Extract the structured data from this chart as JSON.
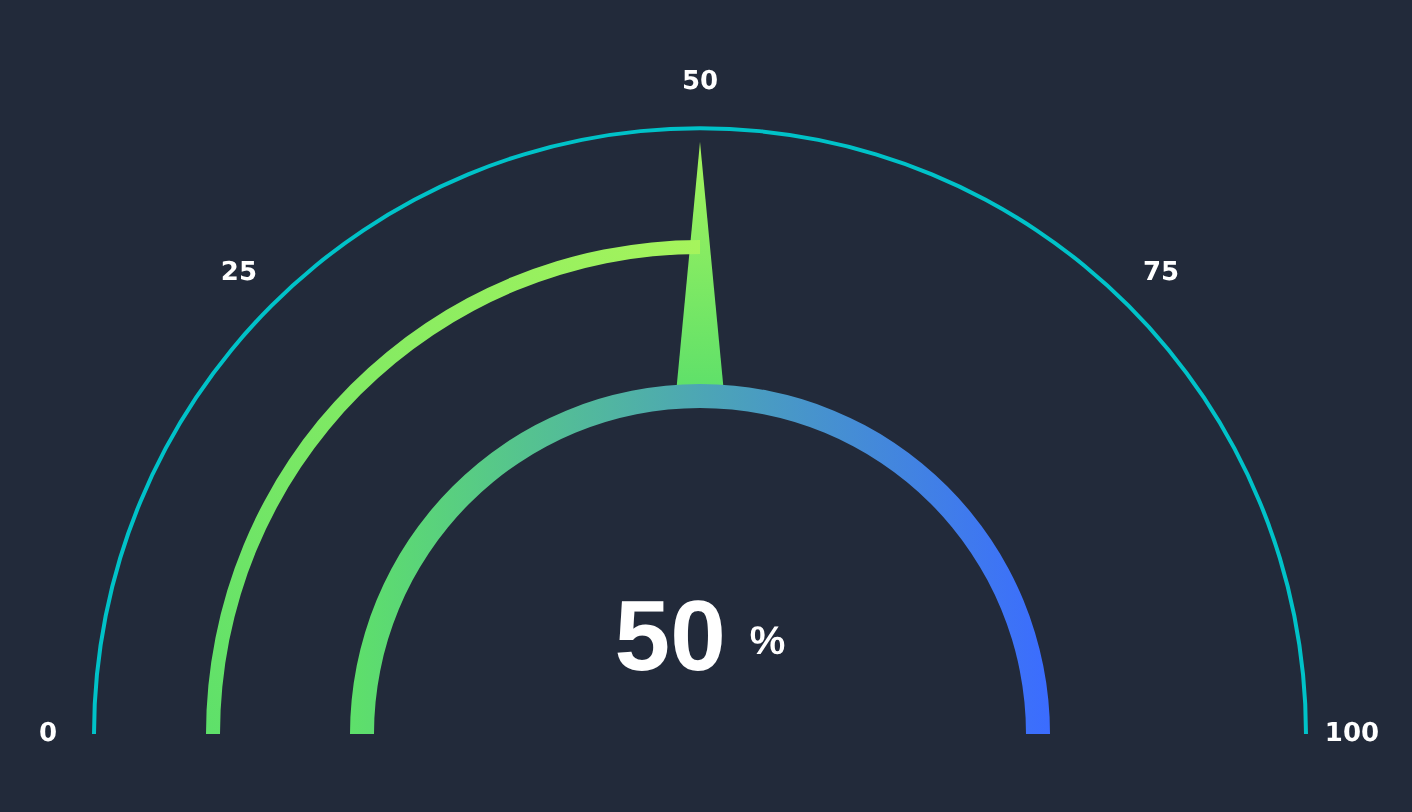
{
  "chart_data": {
    "type": "other",
    "values": [
      50
    ],
    "value_labels": [
      "50 %"
    ],
    "annotations": [
      "0",
      "25",
      "50",
      "75",
      "100"
    ],
    "color": "#00c2c8"
  }
}
